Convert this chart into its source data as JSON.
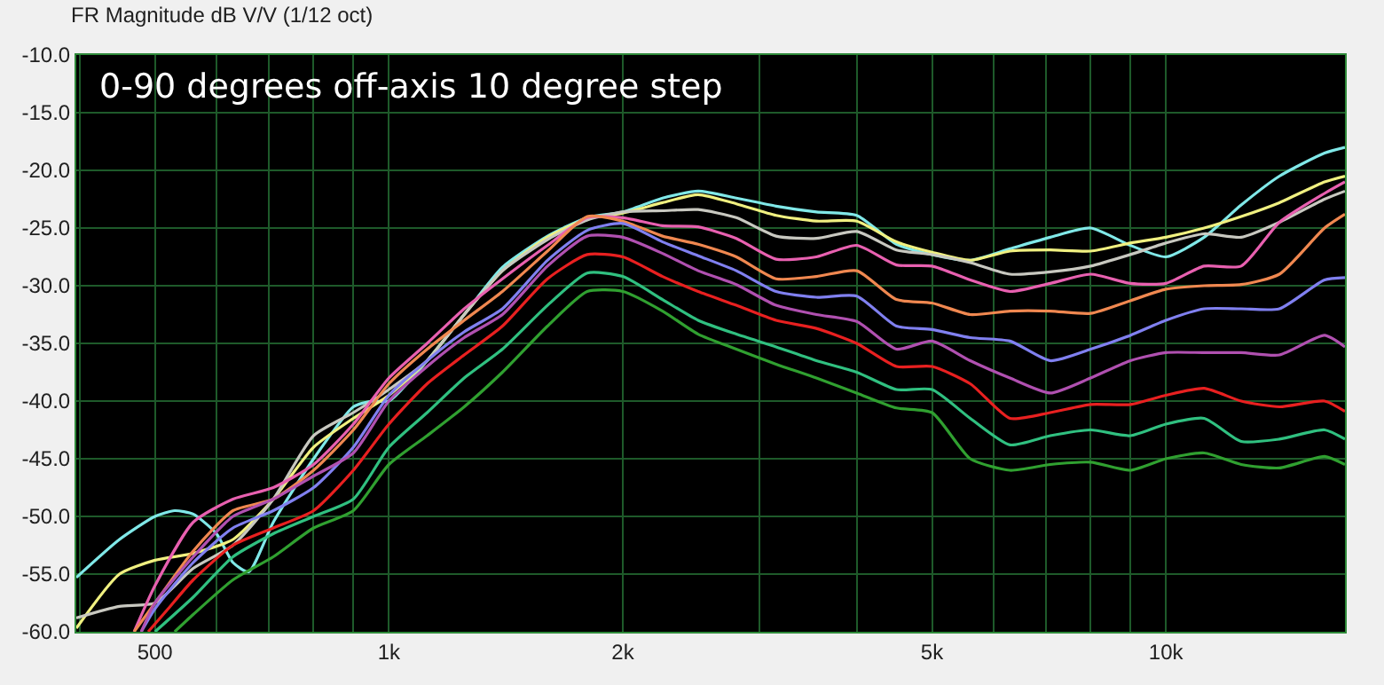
{
  "chart_data": {
    "type": "line",
    "title": "FR Magnitude dB V/V (1/12 oct)",
    "annotations": [
      "0-90 degrees off-axis 10 degree step"
    ],
    "log": "x",
    "grid": true,
    "marker": "none",
    "line_style": "solid",
    "xlim": [
      396,
      17000
    ],
    "ylim": [
      -60,
      -10
    ],
    "xticks": [
      {
        "value": 400,
        "label": null
      },
      {
        "value": 500,
        "label": "500"
      },
      {
        "value": 600,
        "label": null
      },
      {
        "value": 700,
        "label": null
      },
      {
        "value": 800,
        "label": null
      },
      {
        "value": 900,
        "label": null
      },
      {
        "value": 1000,
        "label": "1k"
      },
      {
        "value": 2000,
        "label": "2k"
      },
      {
        "value": 3000,
        "label": null
      },
      {
        "value": 4000,
        "label": null
      },
      {
        "value": 5000,
        "label": "5k"
      },
      {
        "value": 6000,
        "label": null
      },
      {
        "value": 7000,
        "label": null
      },
      {
        "value": 8000,
        "label": null
      },
      {
        "value": 9000,
        "label": null
      },
      {
        "value": 10000,
        "label": "10k"
      }
    ],
    "yticks": [
      {
        "value": -10,
        "label": "-10.0"
      },
      {
        "value": -15,
        "label": "-15.0"
      },
      {
        "value": -20,
        "label": "-20.0"
      },
      {
        "value": -25,
        "label": "-25.0"
      },
      {
        "value": -30,
        "label": "-30.0"
      },
      {
        "value": -35,
        "label": "-35.0"
      },
      {
        "value": -40,
        "label": "-40.0"
      },
      {
        "value": -45,
        "label": "-45.0"
      },
      {
        "value": -50,
        "label": "-50.0"
      },
      {
        "value": -55,
        "label": "-55.0"
      },
      {
        "value": -60,
        "label": "-60.0"
      }
    ],
    "series": [
      {
        "color": "#80e8e8",
        "x": [
          396,
          450,
          500,
          530,
          560,
          600,
          630,
          660,
          710,
          800,
          900,
          950,
          1000,
          1120,
          1250,
          1400,
          1600,
          1800,
          2000,
          2250,
          2500,
          2800,
          3150,
          3550,
          4000,
          4500,
          5000,
          5600,
          6300,
          7100,
          8000,
          9000,
          10000,
          11200,
          12500,
          14000,
          16000,
          17000
        ],
        "values": [
          -55.3,
          -52,
          -50,
          -49.5,
          -49.8,
          -51.5,
          -54,
          -54.8,
          -50.5,
          -45,
          -40.5,
          -40,
          -40,
          -36.5,
          -32.5,
          -28.4,
          -25.7,
          -24.1,
          -23.6,
          -22.4,
          -21.8,
          -22.4,
          -23.1,
          -23.6,
          -23.9,
          -26.4,
          -27.3,
          -27.8,
          -26.8,
          -25.8,
          -25,
          -26.5,
          -27.5,
          -25.8,
          -23,
          -20.5,
          -18.5,
          -18
        ]
      },
      {
        "color": "#f0f080",
        "x": [
          396,
          450,
          500,
          560,
          630,
          710,
          800,
          900,
          1000,
          1120,
          1250,
          1400,
          1600,
          1800,
          2000,
          2250,
          2500,
          2800,
          3150,
          3550,
          4000,
          4500,
          5000,
          5600,
          6300,
          7100,
          8000,
          9000,
          10000,
          11200,
          12500,
          14000,
          16000,
          17000
        ],
        "values": [
          -59.7,
          -55,
          -53.8,
          -53.2,
          -52,
          -48.5,
          -44,
          -41.5,
          -39.5,
          -36.5,
          -32.5,
          -28.7,
          -25.8,
          -24.2,
          -23.7,
          -22.8,
          -22.1,
          -22.9,
          -23.9,
          -24.4,
          -24.4,
          -26.2,
          -27.1,
          -27.8,
          -27,
          -26.9,
          -27,
          -26.3,
          -25.8,
          -25,
          -24,
          -22.8,
          -21,
          -20.5
        ]
      },
      {
        "color": "#c8c8c0",
        "x": [
          396,
          450,
          500,
          560,
          630,
          710,
          800,
          900,
          1000,
          1120,
          1250,
          1400,
          1600,
          1800,
          2000,
          2250,
          2500,
          2800,
          3150,
          3550,
          4000,
          4500,
          5000,
          5600,
          6300,
          7100,
          8000,
          9000,
          10000,
          11200,
          12500,
          14000,
          16000,
          17000
        ],
        "values": [
          -58.8,
          -57.8,
          -57.5,
          -54.5,
          -52.5,
          -48.5,
          -43,
          -41,
          -39,
          -36.5,
          -32.5,
          -28.7,
          -26,
          -24.3,
          -23.6,
          -23.5,
          -23.4,
          -24.1,
          -25.7,
          -25.9,
          -25.3,
          -26.9,
          -27.3,
          -28,
          -29,
          -28.8,
          -28.3,
          -27.3,
          -26.3,
          -25.5,
          -25.8,
          -24.5,
          -22.5,
          -21.8
        ]
      },
      {
        "color": "#e860b0",
        "x": [
          470,
          500,
          560,
          630,
          710,
          800,
          900,
          1000,
          1120,
          1250,
          1400,
          1600,
          1800,
          2000,
          2250,
          2500,
          2800,
          3150,
          3550,
          4000,
          4500,
          5000,
          5600,
          6300,
          7100,
          8000,
          9000,
          10000,
          11200,
          12500,
          14000,
          16000,
          17000
        ],
        "values": [
          -60,
          -56,
          -50.5,
          -48.5,
          -47.5,
          -45.5,
          -42,
          -38,
          -35,
          -32,
          -29.4,
          -26.5,
          -24.1,
          -24.1,
          -24.8,
          -24.9,
          -25.9,
          -27.7,
          -27.5,
          -26.5,
          -28.2,
          -28.3,
          -29.5,
          -30.5,
          -29.8,
          -29,
          -29.8,
          -29.8,
          -28.3,
          -28.3,
          -24.5,
          -22,
          -21
        ]
      },
      {
        "color": "#f08850",
        "x": [
          470,
          500,
          560,
          630,
          710,
          800,
          900,
          1000,
          1120,
          1250,
          1400,
          1600,
          1800,
          2000,
          2250,
          2500,
          2800,
          3150,
          3550,
          4000,
          4500,
          5000,
          5600,
          6300,
          7100,
          8000,
          9000,
          10000,
          11200,
          12500,
          14000,
          16000,
          17000
        ],
        "values": [
          -60,
          -57.5,
          -53,
          -49.5,
          -48.5,
          -46,
          -42.5,
          -38.5,
          -35.5,
          -33,
          -30.5,
          -27,
          -24,
          -24.4,
          -25.7,
          -26.4,
          -27.5,
          -29.4,
          -29.2,
          -28.7,
          -31.2,
          -31.5,
          -32.5,
          -32.2,
          -32.2,
          -32.4,
          -31.3,
          -30.3,
          -30,
          -29.9,
          -29,
          -25,
          -23.8
        ]
      },
      {
        "color": "#8080f0",
        "x": [
          480,
          500,
          560,
          630,
          710,
          800,
          900,
          1000,
          1120,
          1250,
          1400,
          1600,
          1800,
          2000,
          2250,
          2500,
          2800,
          3150,
          3550,
          4000,
          4500,
          5000,
          5600,
          6300,
          7100,
          8000,
          9000,
          10000,
          11200,
          12500,
          14000,
          16000,
          17000
        ],
        "values": [
          -60,
          -58,
          -54,
          -51,
          -49.5,
          -47.5,
          -44,
          -39.5,
          -36.5,
          -34,
          -32,
          -27.8,
          -25.2,
          -24.6,
          -26.2,
          -27.4,
          -28.7,
          -30.5,
          -31,
          -30.9,
          -33.5,
          -33.8,
          -34.5,
          -34.8,
          -36.5,
          -35.5,
          -34.3,
          -33,
          -32,
          -32,
          -32,
          -29.5,
          -29.3
        ]
      },
      {
        "color": "#b050b0",
        "x": [
          480,
          500,
          560,
          630,
          710,
          800,
          900,
          1000,
          1120,
          1250,
          1400,
          1600,
          1800,
          2000,
          2250,
          2500,
          2800,
          3150,
          3550,
          4000,
          4500,
          5000,
          5600,
          6300,
          7100,
          8000,
          9000,
          10000,
          11200,
          12500,
          14000,
          16000,
          17000
        ],
        "values": [
          -60,
          -57.5,
          -53.5,
          -50,
          -48.5,
          -46.5,
          -44.5,
          -40,
          -37,
          -34.5,
          -32.5,
          -28.3,
          -25.7,
          -25.8,
          -27.2,
          -28.7,
          -29.9,
          -31.7,
          -32.5,
          -33.1,
          -35.5,
          -34.8,
          -36.5,
          -38,
          -39.3,
          -38,
          -36.5,
          -35.8,
          -35.8,
          -35.8,
          -36,
          -34.3,
          -35.3
        ]
      },
      {
        "color": "#e82020",
        "x": [
          490,
          520,
          560,
          630,
          710,
          800,
          900,
          1000,
          1120,
          1250,
          1400,
          1600,
          1800,
          2000,
          2250,
          2500,
          2800,
          3150,
          3550,
          4000,
          4500,
          5000,
          5600,
          6300,
          7100,
          8000,
          9000,
          10000,
          11200,
          12500,
          14000,
          16000,
          17000
        ],
        "values": [
          -60,
          -58,
          -55.5,
          -52.5,
          -51,
          -49.5,
          -46,
          -42,
          -38.5,
          -36,
          -33.5,
          -29.4,
          -27.3,
          -27.5,
          -29.2,
          -30.5,
          -31.7,
          -33,
          -33.7,
          -35,
          -37,
          -37,
          -38.5,
          -41.5,
          -41,
          -40.3,
          -40.3,
          -39.5,
          -38.9,
          -40,
          -40.5,
          -40,
          -40.9
        ]
      },
      {
        "color": "#30c080",
        "x": [
          500,
          560,
          630,
          710,
          800,
          900,
          1000,
          1120,
          1250,
          1400,
          1600,
          1800,
          2000,
          2250,
          2500,
          2800,
          3150,
          3550,
          4000,
          4500,
          5000,
          5600,
          6300,
          7100,
          8000,
          9000,
          10000,
          11200,
          12500,
          14000,
          16000,
          17000
        ],
        "values": [
          -60,
          -57,
          -53.5,
          -51.5,
          -50,
          -48.5,
          -44,
          -41,
          -38,
          -35.5,
          -31.7,
          -28.9,
          -29.2,
          -31.2,
          -33,
          -34.2,
          -35.3,
          -36.5,
          -37.5,
          -39,
          -39,
          -41.5,
          -43.8,
          -43,
          -42.5,
          -43,
          -42,
          -41.5,
          -43.5,
          -43.3,
          -42.5,
          -43.3
        ]
      },
      {
        "color": "#30a030",
        "x": [
          530,
          560,
          630,
          710,
          800,
          900,
          1000,
          1120,
          1250,
          1400,
          1600,
          1800,
          2000,
          2250,
          2500,
          2800,
          3150,
          3550,
          4000,
          4500,
          5000,
          5600,
          6300,
          7100,
          8000,
          9000,
          10000,
          11200,
          12500,
          14000,
          16000,
          17000
        ],
        "values": [
          -60,
          -58.5,
          -55.5,
          -53.5,
          -51,
          -49.5,
          -45.5,
          -43,
          -40.5,
          -37.5,
          -33.5,
          -30.5,
          -30.5,
          -32.2,
          -34.2,
          -35.5,
          -36.8,
          -38,
          -39.3,
          -40.6,
          -41,
          -45,
          -46,
          -45.5,
          -45.3,
          -46,
          -45,
          -44.5,
          -45.5,
          -45.8,
          -44.8,
          -45.5
        ]
      }
    ]
  }
}
